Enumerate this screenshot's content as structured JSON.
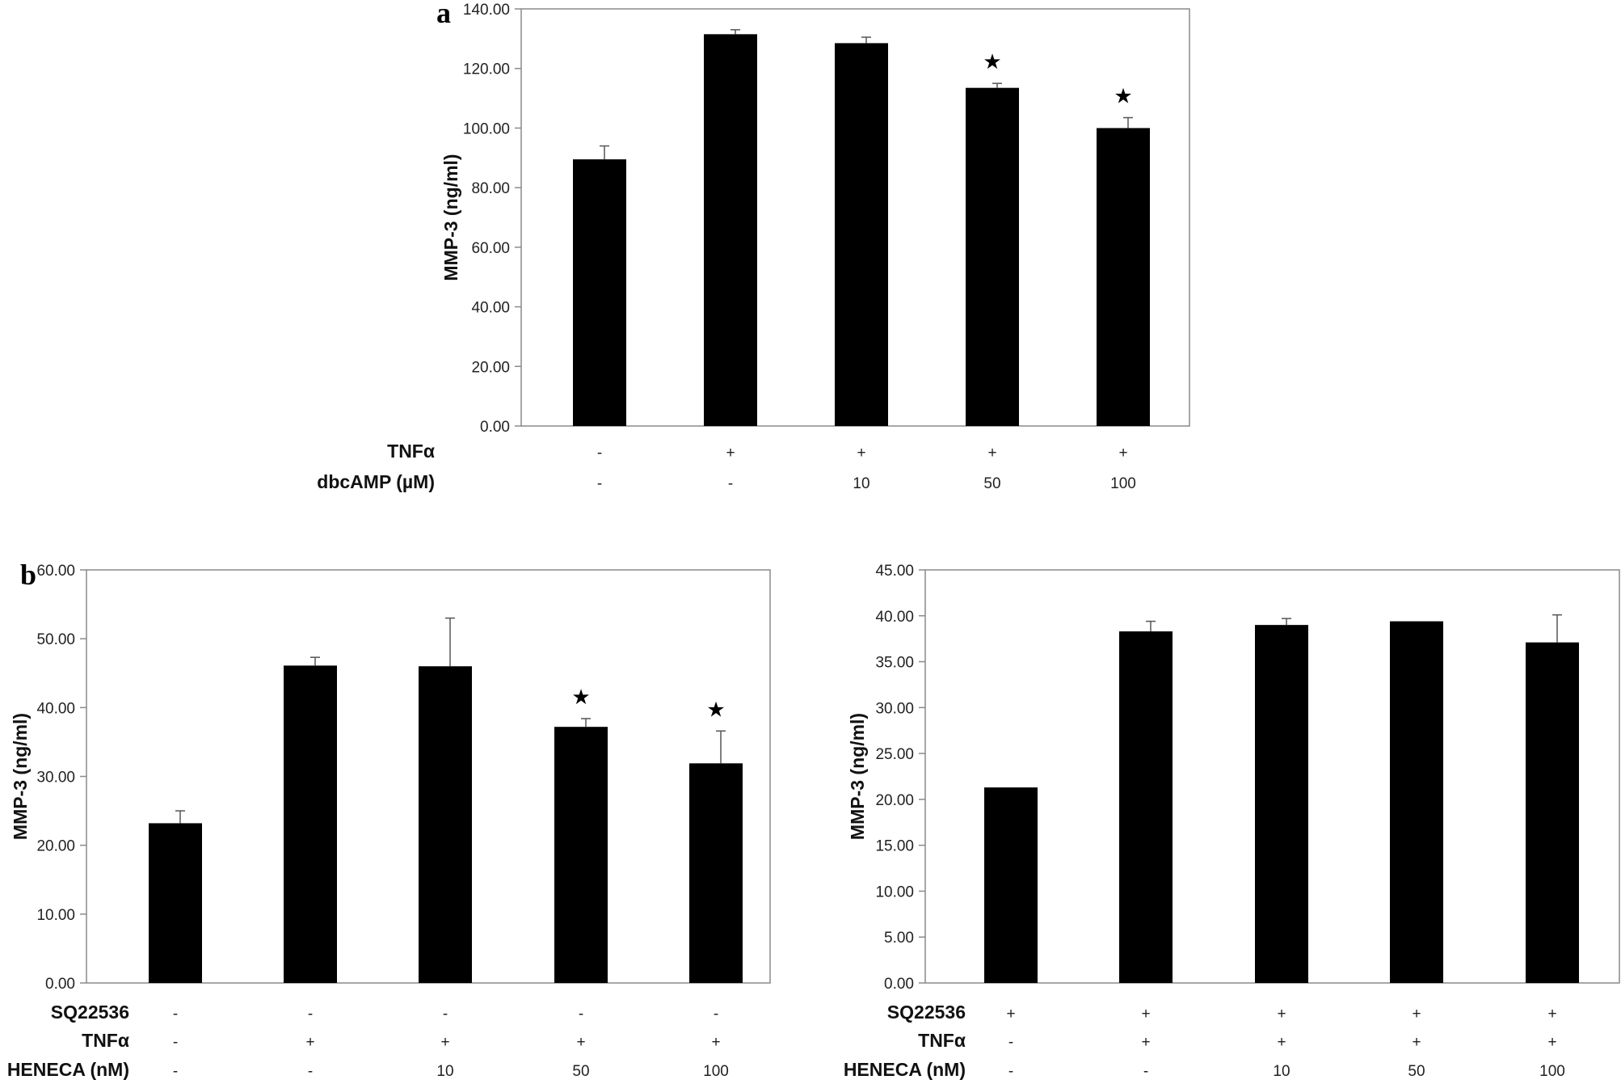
{
  "chart_data": [
    {
      "type": "bar",
      "panel": "a",
      "ylabel": "MMP-3 (ng/ml)",
      "ylim": [
        0,
        140
      ],
      "yticks": [
        "0.00",
        "20.00",
        "40.00",
        "60.00",
        "80.00",
        "100.00",
        "120.00",
        "140.00"
      ],
      "values": [
        89.5,
        131.5,
        128.5,
        113.5,
        100.0
      ],
      "errors": [
        4.5,
        1.5,
        2.0,
        1.5,
        3.5
      ],
      "significant": [
        false,
        false,
        false,
        true,
        true
      ],
      "rows": [
        {
          "label": "TNFα",
          "values": [
            "-",
            "+",
            "+",
            "+",
            "+"
          ]
        },
        {
          "label": "dbcAMP (µM)",
          "values": [
            "-",
            "-",
            "10",
            "50",
            "100"
          ]
        }
      ]
    },
    {
      "type": "bar",
      "panel": "b",
      "ylabel": "MMP-3 (ng/ml)",
      "ylim": [
        0,
        60
      ],
      "yticks": [
        "0.00",
        "10.00",
        "20.00",
        "30.00",
        "40.00",
        "50.00",
        "60.00"
      ],
      "values": [
        23.2,
        46.1,
        46.0,
        37.2,
        31.9
      ],
      "errors": [
        1.8,
        1.2,
        7.0,
        1.2,
        4.7
      ],
      "significant": [
        false,
        false,
        false,
        true,
        true
      ],
      "rows": [
        {
          "label": "SQ22536",
          "values": [
            "-",
            "-",
            "-",
            "-",
            "-"
          ]
        },
        {
          "label": "TNFα",
          "values": [
            "-",
            "+",
            "+",
            "+",
            "+"
          ]
        },
        {
          "label": "HENECA (nM)",
          "values": [
            "-",
            "-",
            "10",
            "50",
            "100"
          ]
        }
      ]
    },
    {
      "type": "bar",
      "panel": "",
      "ylabel": "MMP-3 (ng/ml)",
      "ylim": [
        0,
        45
      ],
      "yticks": [
        "0.00",
        "5.00",
        "10.00",
        "15.00",
        "20.00",
        "25.00",
        "30.00",
        "35.00",
        "40.00",
        "45.00"
      ],
      "values": [
        21.3,
        38.3,
        39.0,
        39.4,
        37.1
      ],
      "errors": [
        0.0,
        1.1,
        0.7,
        0.0,
        3.0
      ],
      "significant": [
        false,
        false,
        false,
        false,
        false
      ],
      "rows": [
        {
          "label": "SQ22536",
          "values": [
            "+",
            "+",
            "+",
            "+",
            "+"
          ]
        },
        {
          "label": "TNFα",
          "values": [
            "-",
            "+",
            "+",
            "+",
            "+"
          ]
        },
        {
          "label": "HENECA (nM)",
          "values": [
            "-",
            "-",
            "10",
            "50",
            "100"
          ]
        }
      ]
    }
  ]
}
